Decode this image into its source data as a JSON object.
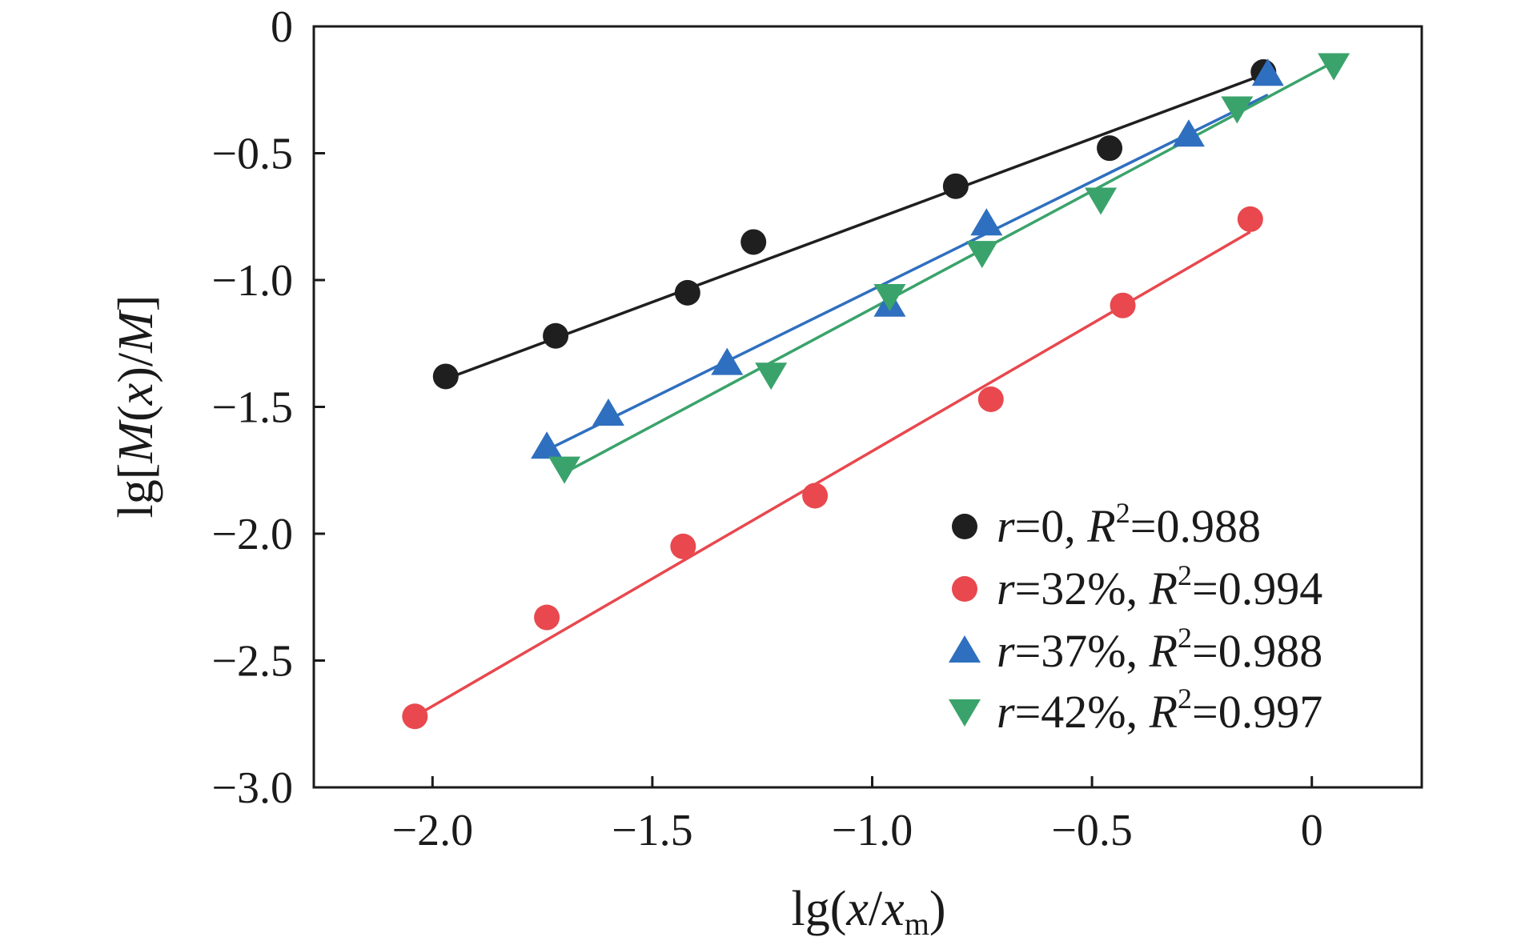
{
  "chart_data": {
    "type": "scatter",
    "title": "",
    "xlabel": {
      "prefix": "lg(",
      "var": "x",
      "slash": "/",
      "var2": "x",
      "sub": "m",
      "suffix": ")"
    },
    "ylabel": {
      "prefix": "lg[",
      "var": "M",
      "mid": "(",
      "var2": "x",
      "mid2": ")/",
      "var3": "M",
      "suffix": "]"
    },
    "xlim": [
      -2.27,
      0.25
    ],
    "ylim": [
      -3.0,
      0
    ],
    "xticks": [
      -2.0,
      -1.5,
      -1.0,
      -0.5,
      0
    ],
    "xtick_labels": [
      "−2.0",
      "−1.5",
      "−1.0",
      "−0.5",
      "0"
    ],
    "yticks": [
      0,
      -0.5,
      -1.0,
      -1.5,
      -2.0,
      -2.5,
      -3.0
    ],
    "ytick_labels": [
      "0",
      "−0.5",
      "−1.0",
      "−1.5",
      "−2.0",
      "−2.5",
      "−3.0"
    ],
    "grid": false,
    "legend_position": "bottom-right",
    "series": [
      {
        "r_label": "r",
        "r_value": "=0, ",
        "R_label": "R",
        "R_sup": "2",
        "R_value": "=0.988",
        "marker": "circle",
        "color": "#1f1f1f",
        "points": [
          [
            -1.97,
            -1.38
          ],
          [
            -1.72,
            -1.22
          ],
          [
            -1.42,
            -1.05
          ],
          [
            -1.27,
            -0.85
          ],
          [
            -0.81,
            -0.63
          ],
          [
            -0.46,
            -0.48
          ],
          [
            -0.11,
            -0.18
          ]
        ],
        "fit": [
          [
            -1.97,
            -1.39
          ],
          [
            -0.11,
            -0.19
          ]
        ]
      },
      {
        "r_label": "r",
        "r_value": "=32%, ",
        "R_label": "R",
        "R_sup": "2",
        "R_value": "=0.994",
        "marker": "circle",
        "color": "#e8484e",
        "points": [
          [
            -2.04,
            -2.72
          ],
          [
            -1.74,
            -2.33
          ],
          [
            -1.43,
            -2.05
          ],
          [
            -1.13,
            -1.85
          ],
          [
            -0.73,
            -1.47
          ],
          [
            -0.43,
            -1.1
          ],
          [
            -0.14,
            -0.76
          ]
        ],
        "fit": [
          [
            -2.04,
            -2.72
          ],
          [
            -0.14,
            -0.81
          ]
        ]
      },
      {
        "r_label": "r",
        "r_value": "=37%, ",
        "R_label": "R",
        "R_sup": "2",
        "R_value": "=0.988",
        "marker": "triangle-up",
        "color": "#2f6fbf",
        "points": [
          [
            -1.74,
            -1.66
          ],
          [
            -1.6,
            -1.53
          ],
          [
            -1.33,
            -1.33
          ],
          [
            -0.96,
            -1.1
          ],
          [
            -0.74,
            -0.78
          ],
          [
            -0.28,
            -0.43
          ],
          [
            -0.1,
            -0.19
          ]
        ],
        "fit": [
          [
            -1.74,
            -1.67
          ],
          [
            -0.1,
            -0.27
          ]
        ]
      },
      {
        "r_label": "r",
        "r_value": "=42%, ",
        "R_label": "R",
        "R_sup": "2",
        "R_value": "=0.997",
        "marker": "triangle-down",
        "color": "#3aa36b",
        "points": [
          [
            -1.7,
            -1.74
          ],
          [
            -1.23,
            -1.37
          ],
          [
            -0.96,
            -1.06
          ],
          [
            -0.75,
            -0.89
          ],
          [
            -0.48,
            -0.68
          ],
          [
            -0.17,
            -0.32
          ],
          [
            0.05,
            -0.15
          ]
        ],
        "fit": [
          [
            -1.7,
            -1.76
          ],
          [
            0.05,
            -0.14
          ]
        ]
      }
    ]
  }
}
